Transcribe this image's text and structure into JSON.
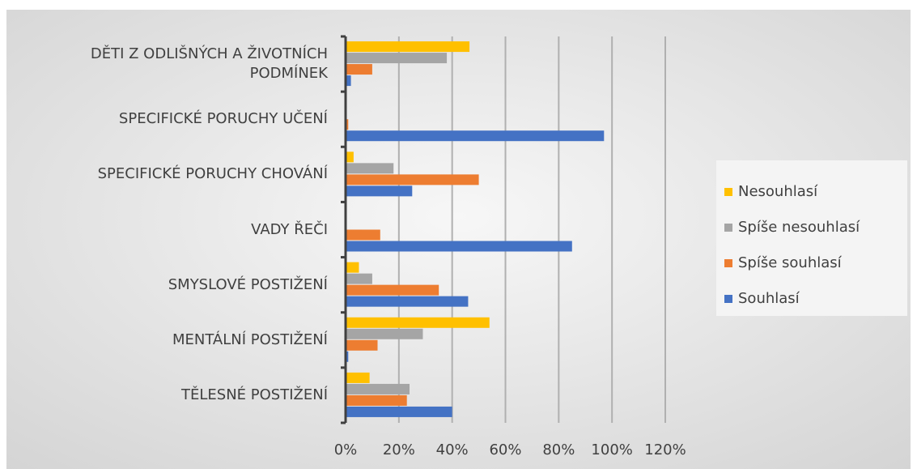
{
  "chart_data": {
    "type": "bar",
    "orientation": "horizontal",
    "categories": [
      "DĚTI Z ODLIŠNÝCH A ŽIVOTNÍCH PODMÍNEK",
      "SPECIFICKÉ PORUCHY UČENÍ",
      "SPECIFICKÉ PORUCHY CHOVÁNÍ",
      "VADY ŘEČI",
      "SMYSLOVÉ POSTIŽENÍ",
      "MENTÁLNÍ POSTIŽENÍ",
      "TĚLESNÉ POSTIŽENÍ"
    ],
    "series": [
      {
        "name": "Nesouhlasí",
        "color": "#ffc000",
        "values": [
          46.5,
          0,
          3,
          0,
          5,
          54,
          9
        ]
      },
      {
        "name": "Spíše nesouhlasí",
        "color": "#a5a5a5",
        "values": [
          38,
          0,
          18,
          0,
          10,
          29,
          24
        ]
      },
      {
        "name": "Spíše souhlasí",
        "color": "#ed7d31",
        "values": [
          10,
          1,
          50,
          13,
          35,
          12,
          23
        ]
      },
      {
        "name": "Souhlasí",
        "color": "#4472c4",
        "values": [
          2,
          97,
          25,
          85,
          46,
          1,
          40
        ]
      }
    ],
    "xlim": [
      0,
      120
    ],
    "xticks": [
      {
        "value": 0,
        "label": "0%"
      },
      {
        "value": 20,
        "label": "20%"
      },
      {
        "value": 40,
        "label": "40%"
      },
      {
        "value": 60,
        "label": "60%"
      },
      {
        "value": 80,
        "label": "80%"
      },
      {
        "value": 100,
        "label": "100%"
      },
      {
        "value": 120,
        "label": "120%"
      }
    ],
    "grid": true,
    "legend": "right"
  }
}
